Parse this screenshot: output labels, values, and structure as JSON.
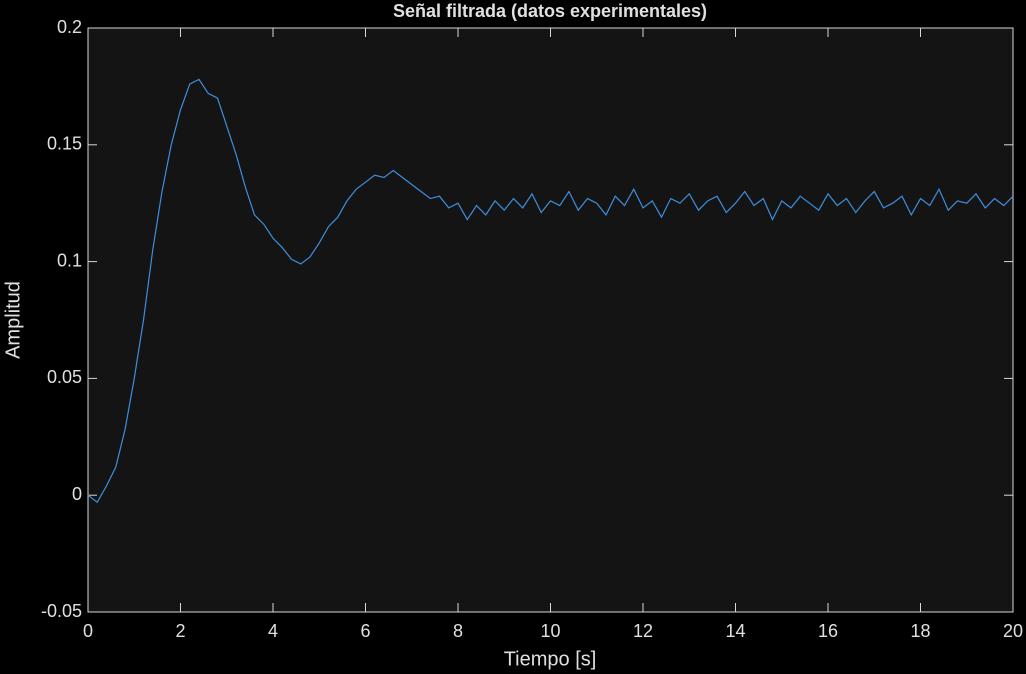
{
  "chart_data": {
    "type": "line",
    "title": "Señal filtrada (datos experimentales)",
    "x_label": "Tiempo [s]",
    "y_label": "Amplitud",
    "x": [
      0,
      0.2,
      0.4,
      0.6,
      0.8,
      1,
      1.2,
      1.4,
      1.6,
      1.8,
      2,
      2.2,
      2.4,
      2.6,
      2.8,
      3,
      3.2,
      3.4,
      3.6,
      3.8,
      4,
      4.2,
      4.4,
      4.6,
      4.8,
      5,
      5.2,
      5.4,
      5.6,
      5.8,
      6,
      6.2,
      6.4,
      6.6,
      6.8,
      7,
      7.2,
      7.4,
      7.6,
      7.8,
      8,
      8.2,
      8.4,
      8.6,
      8.8,
      9,
      9.2,
      9.4,
      9.6,
      9.8,
      10,
      10.2,
      10.4,
      10.6,
      10.8,
      11,
      11.2,
      11.4,
      11.6,
      11.8,
      12,
      12.2,
      12.4,
      12.6,
      12.8,
      13,
      13.2,
      13.4,
      13.6,
      13.8,
      14,
      14.2,
      14.4,
      14.6,
      14.8,
      15,
      15.2,
      15.4,
      15.6,
      15.8,
      16,
      16.2,
      16.4,
      16.6,
      16.8,
      17,
      17.2,
      17.4,
      17.6,
      17.8,
      18,
      18.2,
      18.4,
      18.6,
      18.8,
      19,
      19.2,
      19.4,
      19.6,
      19.8,
      20
    ],
    "series": [
      {
        "name": "Señal filtrada",
        "color": "#3d8fdc",
        "values": [
          0.0,
          -0.003,
          0.004,
          0.012,
          0.028,
          0.05,
          0.075,
          0.105,
          0.13,
          0.15,
          0.165,
          0.176,
          0.178,
          0.172,
          0.17,
          0.158,
          0.146,
          0.132,
          0.12,
          0.116,
          0.11,
          0.106,
          0.101,
          0.099,
          0.102,
          0.108,
          0.115,
          0.119,
          0.126,
          0.131,
          0.134,
          0.137,
          0.136,
          0.139,
          0.136,
          0.133,
          0.13,
          0.127,
          0.128,
          0.123,
          0.125,
          0.118,
          0.124,
          0.12,
          0.126,
          0.122,
          0.127,
          0.123,
          0.129,
          0.121,
          0.126,
          0.124,
          0.13,
          0.122,
          0.127,
          0.125,
          0.12,
          0.128,
          0.124,
          0.131,
          0.123,
          0.126,
          0.119,
          0.127,
          0.125,
          0.129,
          0.122,
          0.126,
          0.128,
          0.121,
          0.125,
          0.13,
          0.124,
          0.127,
          0.118,
          0.126,
          0.123,
          0.128,
          0.125,
          0.122,
          0.129,
          0.124,
          0.127,
          0.121,
          0.126,
          0.13,
          0.123,
          0.125,
          0.128,
          0.12,
          0.127,
          0.124,
          0.131,
          0.122,
          0.126,
          0.125,
          0.129,
          0.123,
          0.127,
          0.124,
          0.128
        ]
      }
    ],
    "xlim": [
      0,
      20
    ],
    "xticks": [
      0,
      2,
      4,
      6,
      8,
      10,
      12,
      14,
      16,
      18,
      20
    ],
    "ylim": [
      -0.05,
      0.2
    ],
    "yticks": [
      -0.05,
      0,
      0.05,
      0.1,
      0.15,
      0.2
    ],
    "grid": false
  }
}
